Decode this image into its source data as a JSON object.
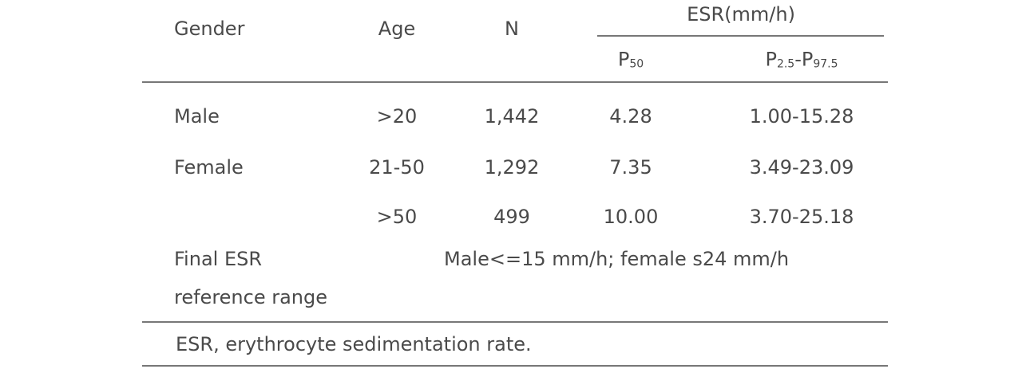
{
  "header": {
    "gender": "Gender",
    "age": "Age",
    "n": "N",
    "esr_group": "ESR(mm/h)",
    "p50": {
      "base": "P",
      "sub": "50"
    },
    "range": {
      "base1": "P",
      "sub1": "2.5",
      "dash": "-",
      "base2": "P",
      "sub2": "97.5"
    }
  },
  "rows": [
    {
      "gender": "Male",
      "age": ">20",
      "n": "1,442",
      "p50": "4.28",
      "range": "1.00-15.28"
    },
    {
      "gender": "Female",
      "age": "21-50",
      "n": "1,292",
      "p50": "7.35",
      "range": "3.49-23.09"
    },
    {
      "gender": "",
      "age": ">50",
      "n": "499",
      "p50": "10.00",
      "range": "3.70-25.18"
    }
  ],
  "final": {
    "label_line1": "Final ESR",
    "label_line2": "reference range",
    "value": "Male<=15 mm/h; female s24 mm/h"
  },
  "footnote": "ESR, erythrocyte sedimentation rate."
}
